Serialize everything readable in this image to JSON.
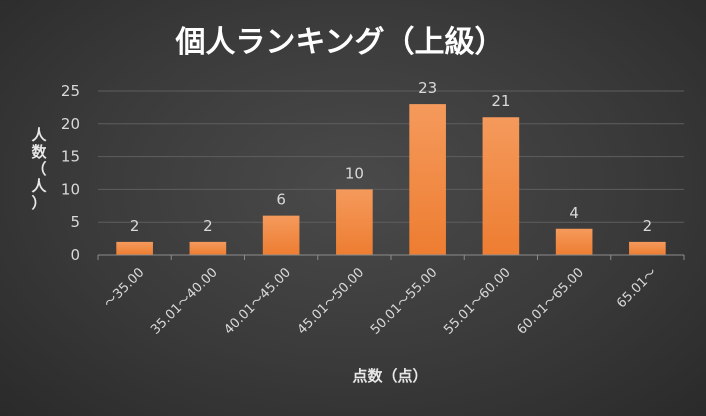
{
  "chart_data": {
    "type": "bar",
    "title": "個人ランキング（上級）",
    "xlabel": "点数（点）",
    "ylabel": "人数（人）",
    "categories": [
      "～35.00",
      "35.01～40.00",
      "40.01～45.00",
      "45.01～50.00",
      "50.01～55.00",
      "55.01～60.00",
      "60.01～65.00",
      "65.01～"
    ],
    "values": [
      2,
      2,
      6,
      10,
      23,
      21,
      4,
      2
    ],
    "ylim": [
      0,
      25
    ],
    "yticks": [
      0,
      5,
      10,
      15,
      20,
      25
    ],
    "grid": true,
    "legend": "none",
    "bar_color": "#ed7d31",
    "bar_color_light": "#f59a5c"
  }
}
